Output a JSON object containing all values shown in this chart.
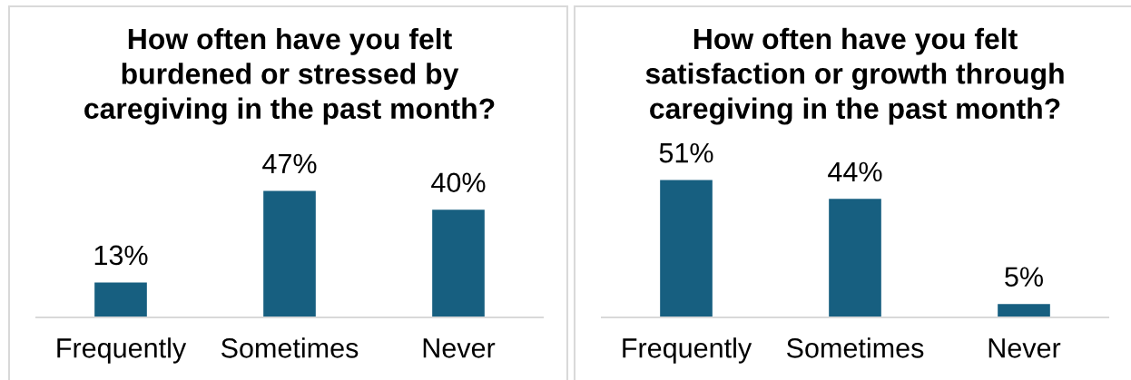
{
  "chart_data": [
    {
      "type": "bar",
      "title": "How often have you felt burdened or stressed by caregiving in the past month?",
      "categories": [
        "Frequently",
        "Sometimes",
        "Never"
      ],
      "values": [
        13,
        47,
        40
      ],
      "value_labels": [
        "13%",
        "47%",
        "40%"
      ],
      "color": "#175f80",
      "tick_labels": "x"
    },
    {
      "type": "bar",
      "title": "How often have you felt satisfaction or growth through caregiving in the past month?",
      "categories": [
        "Frequently",
        "Sometimes",
        "Never"
      ],
      "values": [
        51,
        44,
        5
      ],
      "value_labels": [
        "51%",
        "44%",
        "5%"
      ],
      "color": "#175f80",
      "tick_labels": "x"
    }
  ]
}
